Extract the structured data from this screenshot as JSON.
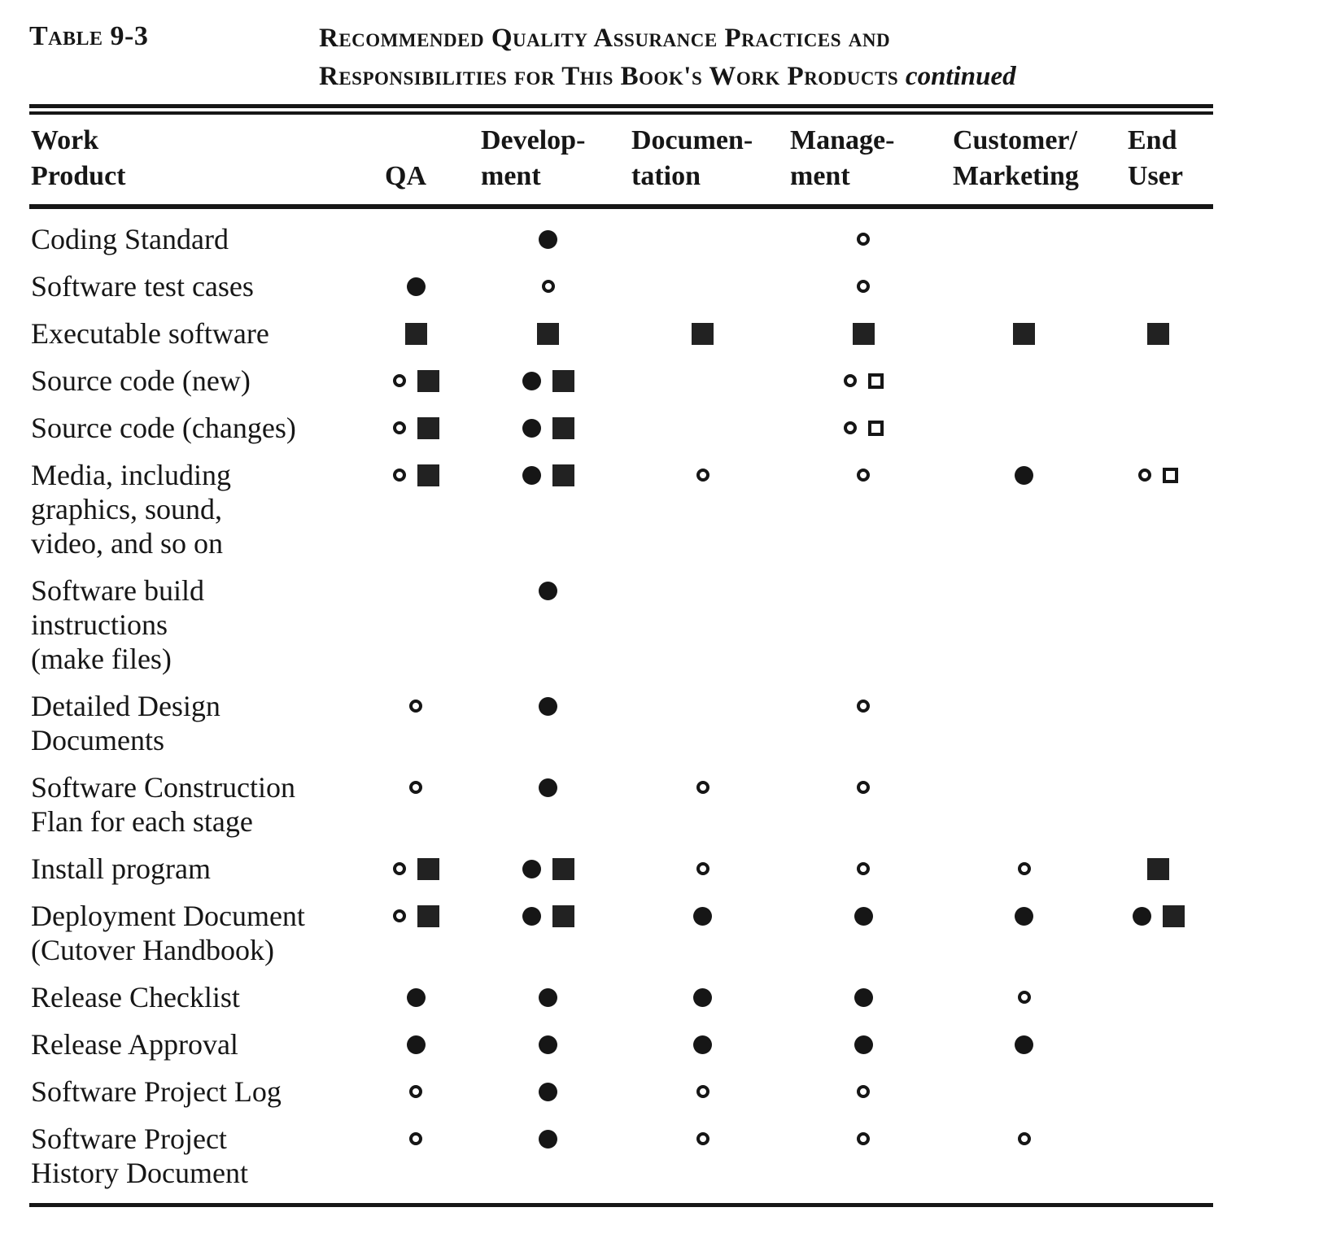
{
  "colors": {
    "ink": "#161616",
    "paper": "#ffffff"
  },
  "caption": {
    "label": "Table 9-3",
    "title_line1": "Recommended Quality Assurance Practices and",
    "title_line2": "Responsibilities for This Book's Work Products",
    "continued": "continued"
  },
  "table": {
    "columns": [
      {
        "id": "work-product",
        "lines": [
          "Work",
          "Product"
        ]
      },
      {
        "id": "qa",
        "lines": [
          "QA"
        ]
      },
      {
        "id": "development",
        "lines": [
          "Develop-",
          "ment"
        ]
      },
      {
        "id": "documentation",
        "lines": [
          "Documen-",
          "tation"
        ]
      },
      {
        "id": "management",
        "lines": [
          "Manage-",
          "ment"
        ]
      },
      {
        "id": "customer-marketing",
        "lines": [
          "Customer/",
          "Marketing"
        ]
      },
      {
        "id": "end-user",
        "lines": [
          "End",
          "User"
        ]
      }
    ],
    "symbol_tokens": [
      "open-circle",
      "filled-circle",
      "open-square",
      "filled-square"
    ],
    "rows": [
      {
        "product": [
          "Coding Standard"
        ],
        "cells": [
          [],
          [
            "filled-circle"
          ],
          [],
          [
            "open-circle"
          ],
          [],
          []
        ]
      },
      {
        "product": [
          "Software test cases"
        ],
        "cells": [
          [
            "filled-circle"
          ],
          [
            "open-circle"
          ],
          [],
          [
            "open-circle"
          ],
          [],
          []
        ]
      },
      {
        "product": [
          "Executable software"
        ],
        "cells": [
          [
            "filled-square"
          ],
          [
            "filled-square"
          ],
          [
            "filled-square"
          ],
          [
            "filled-square"
          ],
          [
            "filled-square"
          ],
          [
            "filled-square"
          ]
        ]
      },
      {
        "product": [
          "Source code (new)"
        ],
        "cells": [
          [
            "open-circle",
            "filled-square"
          ],
          [
            "filled-circle",
            "filled-square"
          ],
          [],
          [
            "open-circle",
            "open-square"
          ],
          [],
          []
        ]
      },
      {
        "product": [
          "Source code (changes)"
        ],
        "cells": [
          [
            "open-circle",
            "filled-square"
          ],
          [
            "filled-circle",
            "filled-square"
          ],
          [],
          [
            "open-circle",
            "open-square"
          ],
          [],
          []
        ]
      },
      {
        "product": [
          "Media, including",
          "graphics, sound,",
          "video, and so on"
        ],
        "cells": [
          [
            "open-circle",
            "filled-square"
          ],
          [
            "filled-circle",
            "filled-square"
          ],
          [
            "open-circle"
          ],
          [
            "open-circle"
          ],
          [
            "filled-circle"
          ],
          [
            "open-circle",
            "open-square"
          ]
        ]
      },
      {
        "product": [
          "Software build",
          "instructions",
          "(make files)"
        ],
        "cells": [
          [],
          [
            "filled-circle"
          ],
          [],
          [],
          [],
          []
        ]
      },
      {
        "product": [
          "Detailed Design",
          "Documents"
        ],
        "cells": [
          [
            "open-circle"
          ],
          [
            "filled-circle"
          ],
          [],
          [
            "open-circle"
          ],
          [],
          []
        ]
      },
      {
        "product": [
          "Software Construction",
          "Flan for each stage"
        ],
        "cells": [
          [
            "open-circle"
          ],
          [
            "filled-circle"
          ],
          [
            "open-circle"
          ],
          [
            "open-circle"
          ],
          [],
          []
        ]
      },
      {
        "product": [
          "Install program"
        ],
        "cells": [
          [
            "open-circle",
            "filled-square"
          ],
          [
            "filled-circle",
            "filled-square"
          ],
          [
            "open-circle"
          ],
          [
            "open-circle"
          ],
          [
            "open-circle"
          ],
          [
            "filled-square"
          ]
        ]
      },
      {
        "product": [
          "Deployment Document",
          "(Cutover Handbook)"
        ],
        "cells": [
          [
            "open-circle",
            "filled-square"
          ],
          [
            "filled-circle",
            "filled-square"
          ],
          [
            "filled-circle"
          ],
          [
            "filled-circle"
          ],
          [
            "filled-circle"
          ],
          [
            "filled-circle",
            "filled-square"
          ]
        ]
      },
      {
        "product": [
          "Release Checklist"
        ],
        "cells": [
          [
            "filled-circle"
          ],
          [
            "filled-circle"
          ],
          [
            "filled-circle"
          ],
          [
            "filled-circle"
          ],
          [
            "open-circle"
          ],
          []
        ]
      },
      {
        "product": [
          "Release Approval"
        ],
        "cells": [
          [
            "filled-circle"
          ],
          [
            "filled-circle"
          ],
          [
            "filled-circle"
          ],
          [
            "filled-circle"
          ],
          [
            "filled-circle"
          ],
          []
        ]
      },
      {
        "product": [
          "Software Project Log"
        ],
        "cells": [
          [
            "open-circle"
          ],
          [
            "filled-circle"
          ],
          [
            "open-circle"
          ],
          [
            "open-circle"
          ],
          [],
          []
        ]
      },
      {
        "product": [
          "Software Project",
          "History Document"
        ],
        "cells": [
          [
            "open-circle"
          ],
          [
            "filled-circle"
          ],
          [
            "open-circle"
          ],
          [
            "open-circle"
          ],
          [
            "open-circle"
          ],
          []
        ]
      }
    ]
  }
}
